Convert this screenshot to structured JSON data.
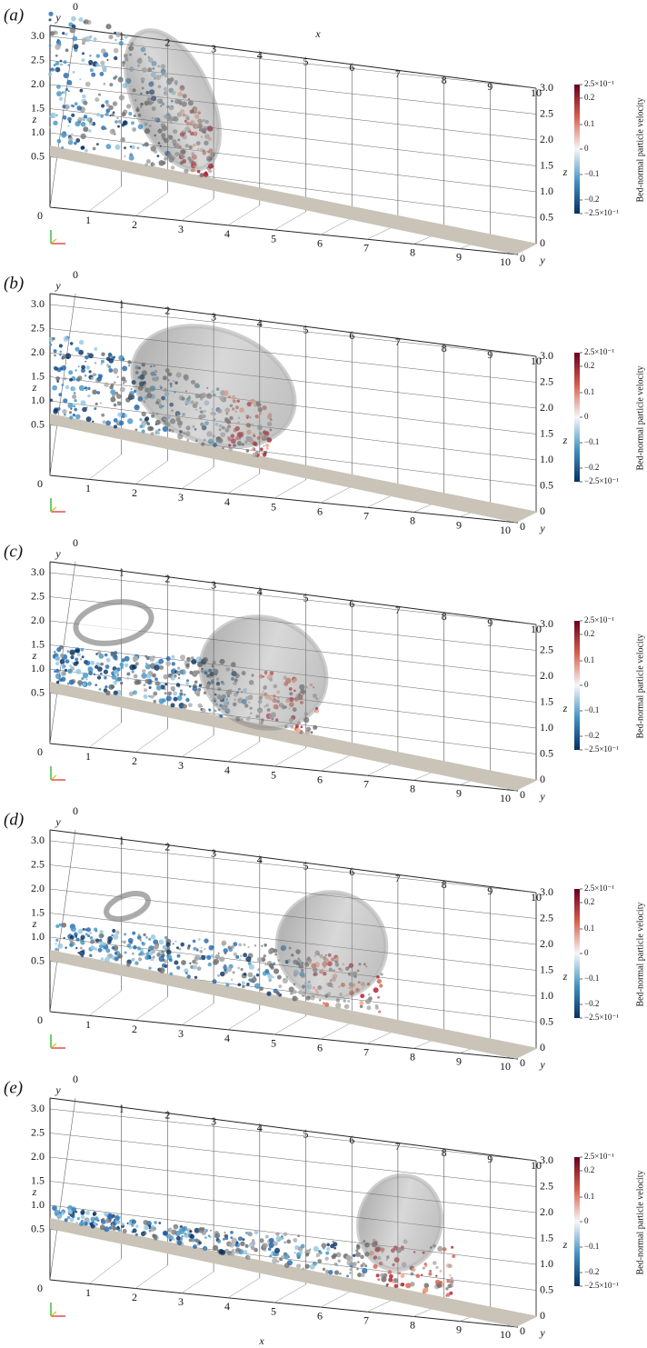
{
  "panels": [
    {
      "label": "(a)",
      "top_x_label": "x"
    },
    {
      "label": "(b)"
    },
    {
      "label": "(c)"
    },
    {
      "label": "(d)"
    },
    {
      "label": "(e)",
      "bottom_x_label": "x"
    }
  ],
  "axes": {
    "y_label": "y",
    "z_label": "z",
    "y_tick_zero": "0",
    "top_x_ticks": [
      "0",
      "1",
      "2",
      "3",
      "4",
      "5",
      "6",
      "7",
      "8",
      "9",
      "10"
    ],
    "bottom_x_ticks": [
      "0",
      "1",
      "2",
      "3",
      "4",
      "5",
      "6",
      "7",
      "8",
      "9",
      "10"
    ],
    "left_z_ticks": [
      "3.0",
      "2.5",
      "2.0",
      "1.5",
      "1.0",
      "0.5"
    ],
    "right_z_ticks": [
      "3.0",
      "2.5",
      "2.0",
      "1.5",
      "1.0",
      "0.5",
      "0"
    ]
  },
  "colorbar": {
    "title": "Bed-normal particle velocity",
    "ticks": [
      "2.5×10⁻¹",
      "0.2",
      "0.1",
      "0",
      "−0.1",
      "−0.2",
      "−2.5×10⁻¹"
    ]
  }
}
